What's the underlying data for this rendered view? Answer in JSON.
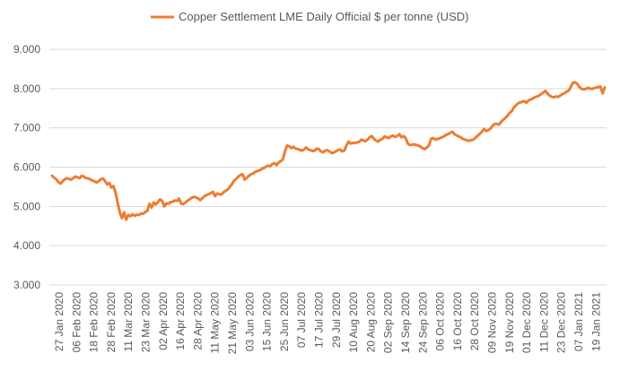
{
  "chart_data": {
    "type": "line",
    "title": "",
    "xlabel": "",
    "ylabel": "",
    "legend_position": "top-center",
    "grid": true,
    "ylim": [
      3000,
      9000
    ],
    "y_ticks": [
      "3.000",
      "4.000",
      "5.000",
      "6.000",
      "7.000",
      "8.000",
      "9.000"
    ],
    "y_tick_values": [
      3000,
      4000,
      5000,
      6000,
      7000,
      8000,
      9000
    ],
    "x_tick_labels": [
      "27 Jan 2020",
      "06 Feb 2020",
      "18 Feb 2020",
      "28 Feb 2020",
      "11 Mar 2020",
      "23 Mar 2020",
      "02 Apr 2020",
      "16 Apr 2020",
      "28 Apr 2020",
      "11 May 2020",
      "21 May 2020",
      "03 Jun 2020",
      "15 Jun 2020",
      "25 Jun 2020",
      "07 Jul 2020",
      "17 Jul 2020",
      "29 Jul 2020",
      "10 Aug 2020",
      "20 Aug 2020",
      "02 Sep 2020",
      "14 Sep 2020",
      "24 Sep 2020",
      "06 Oct 2020",
      "16 Oct 2020",
      "28 Oct 2020",
      "09 Nov 2020",
      "19 Nov 2020",
      "01 Dec 2020",
      "11 Dec 2020",
      "23 Dec 2020",
      "07 Jan 2021",
      "19 Jan 2021"
    ],
    "series": [
      {
        "name": "Copper Settlement LME Daily Official $ per tonne (USD)",
        "color": "#ed7d31",
        "values": [
          5780,
          5730,
          5690,
          5620,
          5580,
          5640,
          5690,
          5720,
          5700,
          5680,
          5720,
          5760,
          5740,
          5720,
          5780,
          5760,
          5720,
          5710,
          5690,
          5660,
          5640,
          5610,
          5640,
          5690,
          5710,
          5650,
          5560,
          5600,
          5480,
          5520,
          5350,
          5090,
          4850,
          4700,
          4850,
          4660,
          4780,
          4750,
          4800,
          4760,
          4790,
          4780,
          4820,
          4810,
          4860,
          4880,
          5070,
          4970,
          5100,
          5050,
          5110,
          5180,
          5140,
          5000,
          5080,
          5070,
          5110,
          5120,
          5150,
          5140,
          5200,
          5070,
          5060,
          5100,
          5150,
          5180,
          5220,
          5240,
          5230,
          5200,
          5160,
          5210,
          5260,
          5290,
          5310,
          5340,
          5370,
          5260,
          5330,
          5310,
          5300,
          5360,
          5400,
          5430,
          5500,
          5570,
          5660,
          5700,
          5760,
          5800,
          5820,
          5680,
          5730,
          5780,
          5820,
          5840,
          5880,
          5900,
          5920,
          5950,
          5980,
          6010,
          6040,
          6020,
          6080,
          6100,
          6050,
          6120,
          6150,
          6200,
          6400,
          6550,
          6530,
          6480,
          6520,
          6470,
          6460,
          6440,
          6420,
          6450,
          6500,
          6450,
          6430,
          6410,
          6420,
          6470,
          6460,
          6400,
          6380,
          6420,
          6430,
          6400,
          6360,
          6370,
          6400,
          6430,
          6450,
          6400,
          6420,
          6550,
          6650,
          6600,
          6620,
          6610,
          6630,
          6640,
          6700,
          6680,
          6660,
          6700,
          6760,
          6790,
          6720,
          6680,
          6650,
          6700,
          6720,
          6780,
          6760,
          6740,
          6780,
          6800,
          6770,
          6790,
          6840,
          6760,
          6790,
          6740,
          6600,
          6560,
          6570,
          6580,
          6560,
          6550,
          6520,
          6480,
          6460,
          6500,
          6560,
          6720,
          6740,
          6700,
          6720,
          6730,
          6760,
          6780,
          6820,
          6840,
          6870,
          6900,
          6840,
          6810,
          6780,
          6760,
          6720,
          6700,
          6680,
          6670,
          6690,
          6700,
          6750,
          6800,
          6850,
          6900,
          6970,
          6920,
          6940,
          6980,
          7050,
          7100,
          7100,
          7080,
          7150,
          7200,
          7250,
          7300,
          7380,
          7420,
          7510,
          7570,
          7620,
          7650,
          7660,
          7680,
          7640,
          7700,
          7720,
          7750,
          7780,
          7800,
          7820,
          7860,
          7900,
          7940,
          7870,
          7820,
          7790,
          7780,
          7800,
          7790,
          7820,
          7860,
          7880,
          7920,
          7950,
          8050,
          8150,
          8160,
          8120,
          8040,
          7990,
          7980,
          7990,
          8020,
          8000,
          7990,
          8010,
          8030,
          8040,
          8050,
          7880,
          8030
        ]
      }
    ]
  }
}
